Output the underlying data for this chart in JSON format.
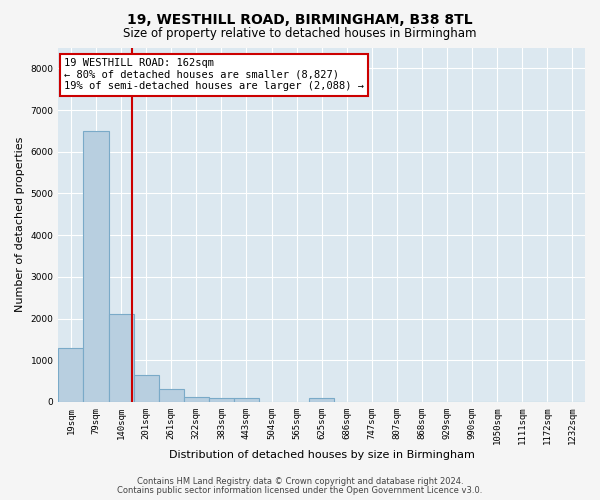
{
  "title": "19, WESTHILL ROAD, BIRMINGHAM, B38 8TL",
  "subtitle": "Size of property relative to detached houses in Birmingham",
  "xlabel": "Distribution of detached houses by size in Birmingham",
  "ylabel": "Number of detached properties",
  "categories": [
    "19sqm",
    "79sqm",
    "140sqm",
    "201sqm",
    "261sqm",
    "322sqm",
    "383sqm",
    "443sqm",
    "504sqm",
    "565sqm",
    "625sqm",
    "686sqm",
    "747sqm",
    "807sqm",
    "868sqm",
    "929sqm",
    "990sqm",
    "1050sqm",
    "1111sqm",
    "1172sqm",
    "1232sqm"
  ],
  "values": [
    1300,
    6500,
    2100,
    650,
    300,
    120,
    100,
    100,
    0,
    0,
    100,
    0,
    0,
    0,
    0,
    0,
    0,
    0,
    0,
    0,
    0
  ],
  "bar_color": "#b8cfe0",
  "bar_edge_color": "#7aaac8",
  "vline_x_index": 2.42,
  "vline_color": "#cc0000",
  "annotation_line1": "19 WESTHILL ROAD: 162sqm",
  "annotation_line2": "← 80% of detached houses are smaller (8,827)",
  "annotation_line3": "19% of semi-detached houses are larger (2,088) →",
  "annotation_box_color": "#cc0000",
  "annotation_bg_color": "#ffffff",
  "ylim": [
    0,
    8500
  ],
  "yticks": [
    0,
    1000,
    2000,
    3000,
    4000,
    5000,
    6000,
    7000,
    8000
  ],
  "bg_color": "#dce8f0",
  "grid_color": "#ffffff",
  "fig_bg_color": "#f5f5f5",
  "footer_line1": "Contains HM Land Registry data © Crown copyright and database right 2024.",
  "footer_line2": "Contains public sector information licensed under the Open Government Licence v3.0.",
  "title_fontsize": 10,
  "subtitle_fontsize": 8.5,
  "tick_fontsize": 6.5,
  "label_fontsize": 8,
  "annotation_fontsize": 7.5,
  "footer_fontsize": 6
}
